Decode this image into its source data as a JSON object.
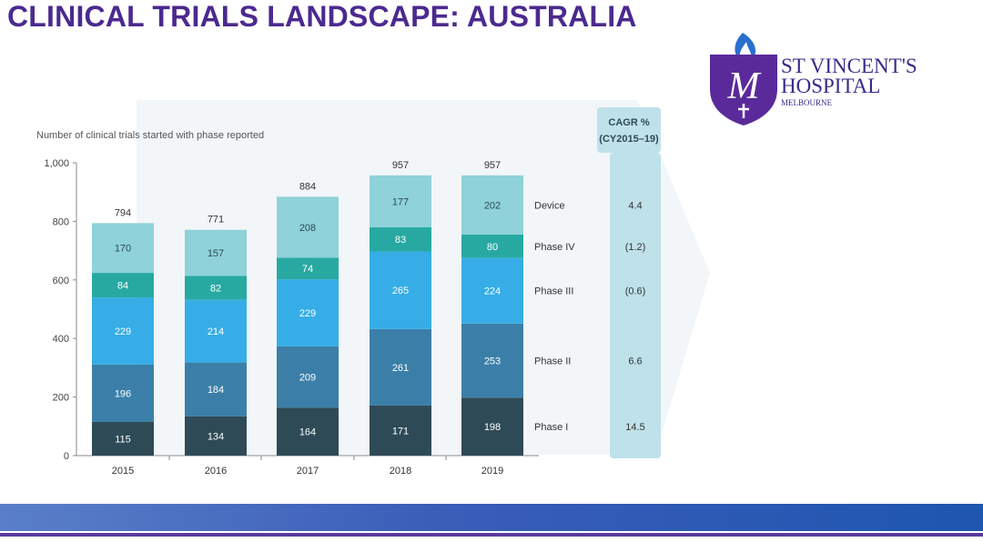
{
  "slide": {
    "title": "CLINICAL TRIALS LANDSCAPE: AUSTRALIA"
  },
  "logo": {
    "name_line1": "ST VINCENT'S",
    "name_line2": "HOSPITAL",
    "name_line3": "MELBOURNE"
  },
  "chart_data": {
    "type": "bar",
    "stacked": true,
    "title": "",
    "ylabel": "Number of clinical trials started with phase reported",
    "xlabel": "",
    "ylim": [
      0,
      1000
    ],
    "yticks": [
      "0",
      "200",
      "400",
      "600",
      "800",
      "1,000"
    ],
    "ytick_values": [
      0,
      200,
      400,
      600,
      800,
      1000
    ],
    "categories": [
      "2015",
      "2016",
      "2017",
      "2018",
      "2019"
    ],
    "totals": [
      794,
      771,
      884,
      957,
      957
    ],
    "series": [
      {
        "name": "Phase I",
        "values": [
          115,
          134,
          164,
          171,
          198
        ],
        "color": "#2f4a57",
        "cagr": "14.5"
      },
      {
        "name": "Phase II",
        "values": [
          196,
          184,
          209,
          261,
          253
        ],
        "color": "#3b7fa8",
        "cagr": "6.6"
      },
      {
        "name": "Phase III",
        "values": [
          229,
          214,
          229,
          265,
          224
        ],
        "color": "#36ade6",
        "cagr": "(0.6)"
      },
      {
        "name": "Phase IV",
        "values": [
          84,
          82,
          74,
          83,
          80
        ],
        "color": "#27a9a2",
        "cagr": "(1.2)"
      },
      {
        "name": "Device",
        "values": [
          170,
          157,
          208,
          177,
          202
        ],
        "color": "#8fd2d9",
        "cagr": "4.4"
      }
    ],
    "cagr_header": [
      "CAGR %",
      "(CY2015–19)"
    ],
    "grid": false,
    "legend_placement": "right"
  }
}
